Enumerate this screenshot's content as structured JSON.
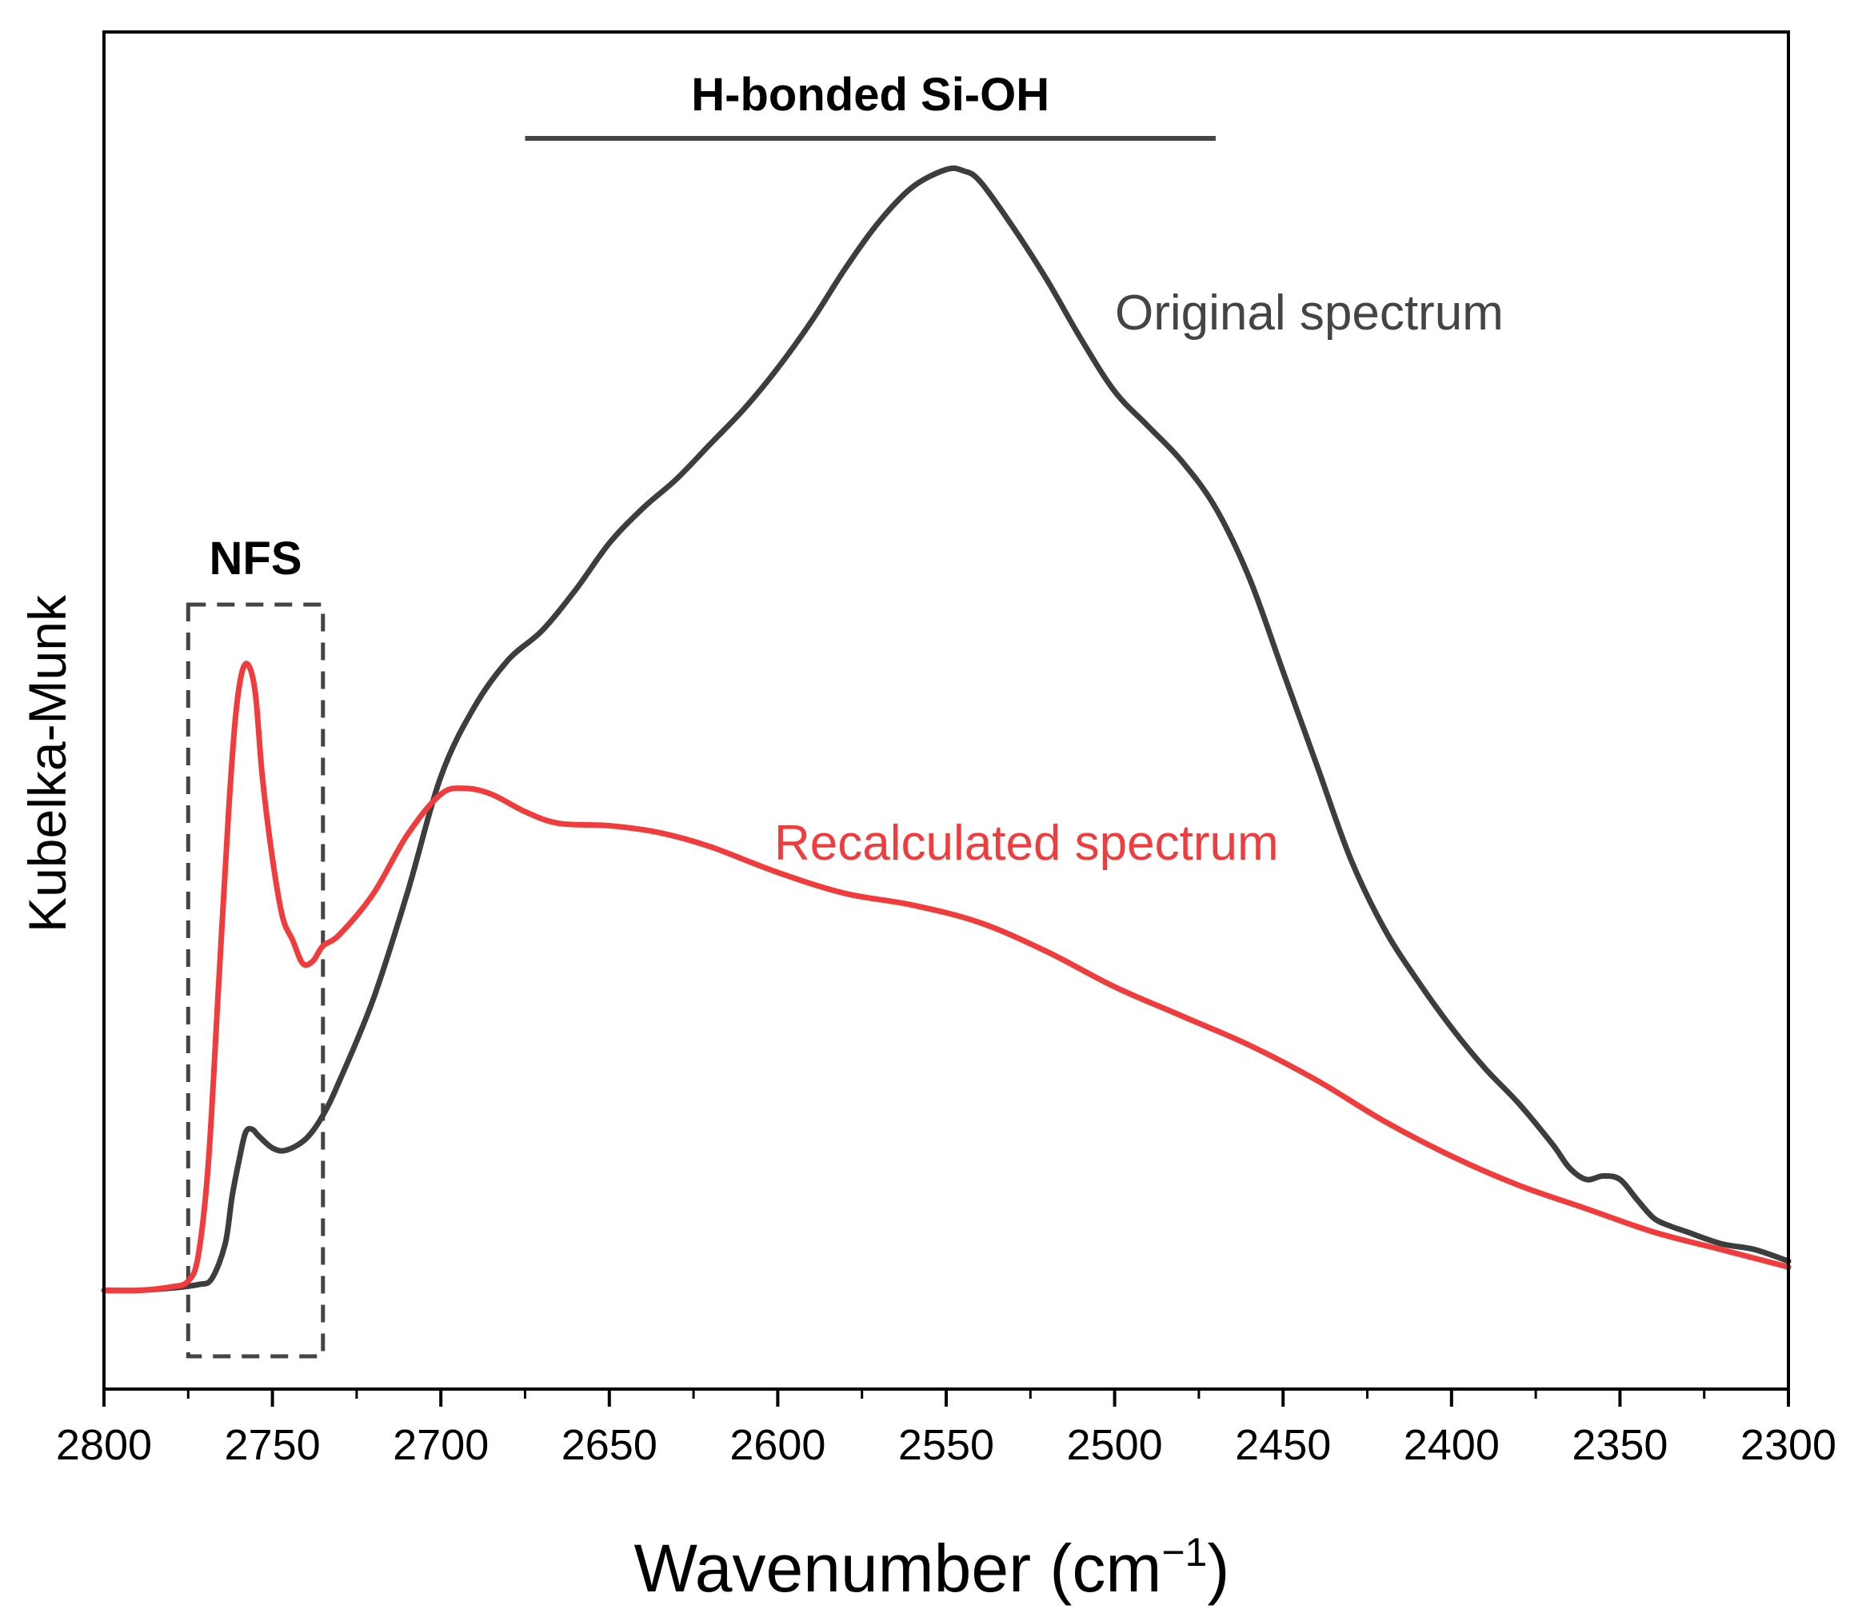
{
  "chart_data": {
    "type": "line",
    "xlabel": "Wavenumber (cm",
    "xlabel_sup": "−1",
    "xlabel_close": ")",
    "ylabel": "Kubelka-Munk",
    "xlim": [
      2800,
      2300
    ],
    "ylim": [
      0,
      1
    ],
    "x_reversed": true,
    "y_ticks_shown": false,
    "x_ticks": [
      "2800",
      "2750",
      "2700",
      "2650",
      "2600",
      "2550",
      "2500",
      "2450",
      "2400",
      "2350",
      "2300"
    ],
    "grid": false,
    "series": [
      {
        "name": "Original spectrum",
        "color": "#3d3d3d",
        "x": [
          2800,
          2790,
          2780,
          2772,
          2768,
          2764,
          2762,
          2760,
          2758,
          2756,
          2754,
          2750,
          2746,
          2740,
          2735,
          2730,
          2720,
          2710,
          2700,
          2690,
          2680,
          2670,
          2660,
          2650,
          2640,
          2630,
          2620,
          2610,
          2600,
          2590,
          2580,
          2570,
          2560,
          2550,
          2545,
          2540,
          2530,
          2520,
          2510,
          2500,
          2490,
          2480,
          2470,
          2460,
          2450,
          2440,
          2430,
          2420,
          2410,
          2400,
          2390,
          2380,
          2370,
          2365,
          2360,
          2355,
          2350,
          2345,
          2340,
          2335,
          2330,
          2320,
          2310,
          2300
        ],
        "y": [
          0.04,
          0.04,
          0.042,
          0.045,
          0.05,
          0.08,
          0.12,
          0.15,
          0.175,
          0.178,
          0.172,
          0.162,
          0.16,
          0.17,
          0.19,
          0.22,
          0.29,
          0.38,
          0.48,
          0.54,
          0.58,
          0.605,
          0.64,
          0.68,
          0.71,
          0.735,
          0.765,
          0.795,
          0.83,
          0.87,
          0.915,
          0.955,
          0.985,
          1.0,
          0.999,
          0.99,
          0.95,
          0.905,
          0.855,
          0.81,
          0.78,
          0.75,
          0.71,
          0.65,
          0.57,
          0.49,
          0.41,
          0.35,
          0.305,
          0.265,
          0.23,
          0.2,
          0.165,
          0.145,
          0.135,
          0.138,
          0.135,
          0.118,
          0.102,
          0.095,
          0.09,
          0.08,
          0.075,
          0.065
        ]
      },
      {
        "name": "Recalculated spectrum",
        "color": "#f03c3c",
        "x": [
          2800,
          2790,
          2780,
          2775,
          2772,
          2769,
          2766,
          2763,
          2761,
          2759,
          2757,
          2755,
          2753,
          2750,
          2747,
          2744,
          2741,
          2738,
          2735,
          2730,
          2720,
          2710,
          2700,
          2693,
          2685,
          2675,
          2665,
          2650,
          2635,
          2620,
          2600,
          2580,
          2560,
          2540,
          2520,
          2500,
          2480,
          2460,
          2440,
          2420,
          2400,
          2380,
          2360,
          2340,
          2320,
          2300
        ],
        "y": [
          0.04,
          0.04,
          0.043,
          0.048,
          0.07,
          0.15,
          0.3,
          0.45,
          0.53,
          0.57,
          0.575,
          0.55,
          0.48,
          0.41,
          0.36,
          0.34,
          0.32,
          0.322,
          0.335,
          0.345,
          0.38,
          0.43,
          0.465,
          0.47,
          0.465,
          0.45,
          0.44,
          0.438,
          0.432,
          0.42,
          0.398,
          0.38,
          0.37,
          0.355,
          0.33,
          0.3,
          0.275,
          0.25,
          0.22,
          0.185,
          0.155,
          0.13,
          0.11,
          0.09,
          0.075,
          0.06
        ]
      }
    ],
    "annotations": {
      "hbonded_label": "H-bonded Si-OH",
      "hbonded_range": [
        2675,
        2470
      ],
      "nfs_label": "NFS",
      "nfs_range": [
        2775,
        2735
      ],
      "original_label": "Original spectrum",
      "recalculated_label": "Recalculated spectrum"
    }
  }
}
